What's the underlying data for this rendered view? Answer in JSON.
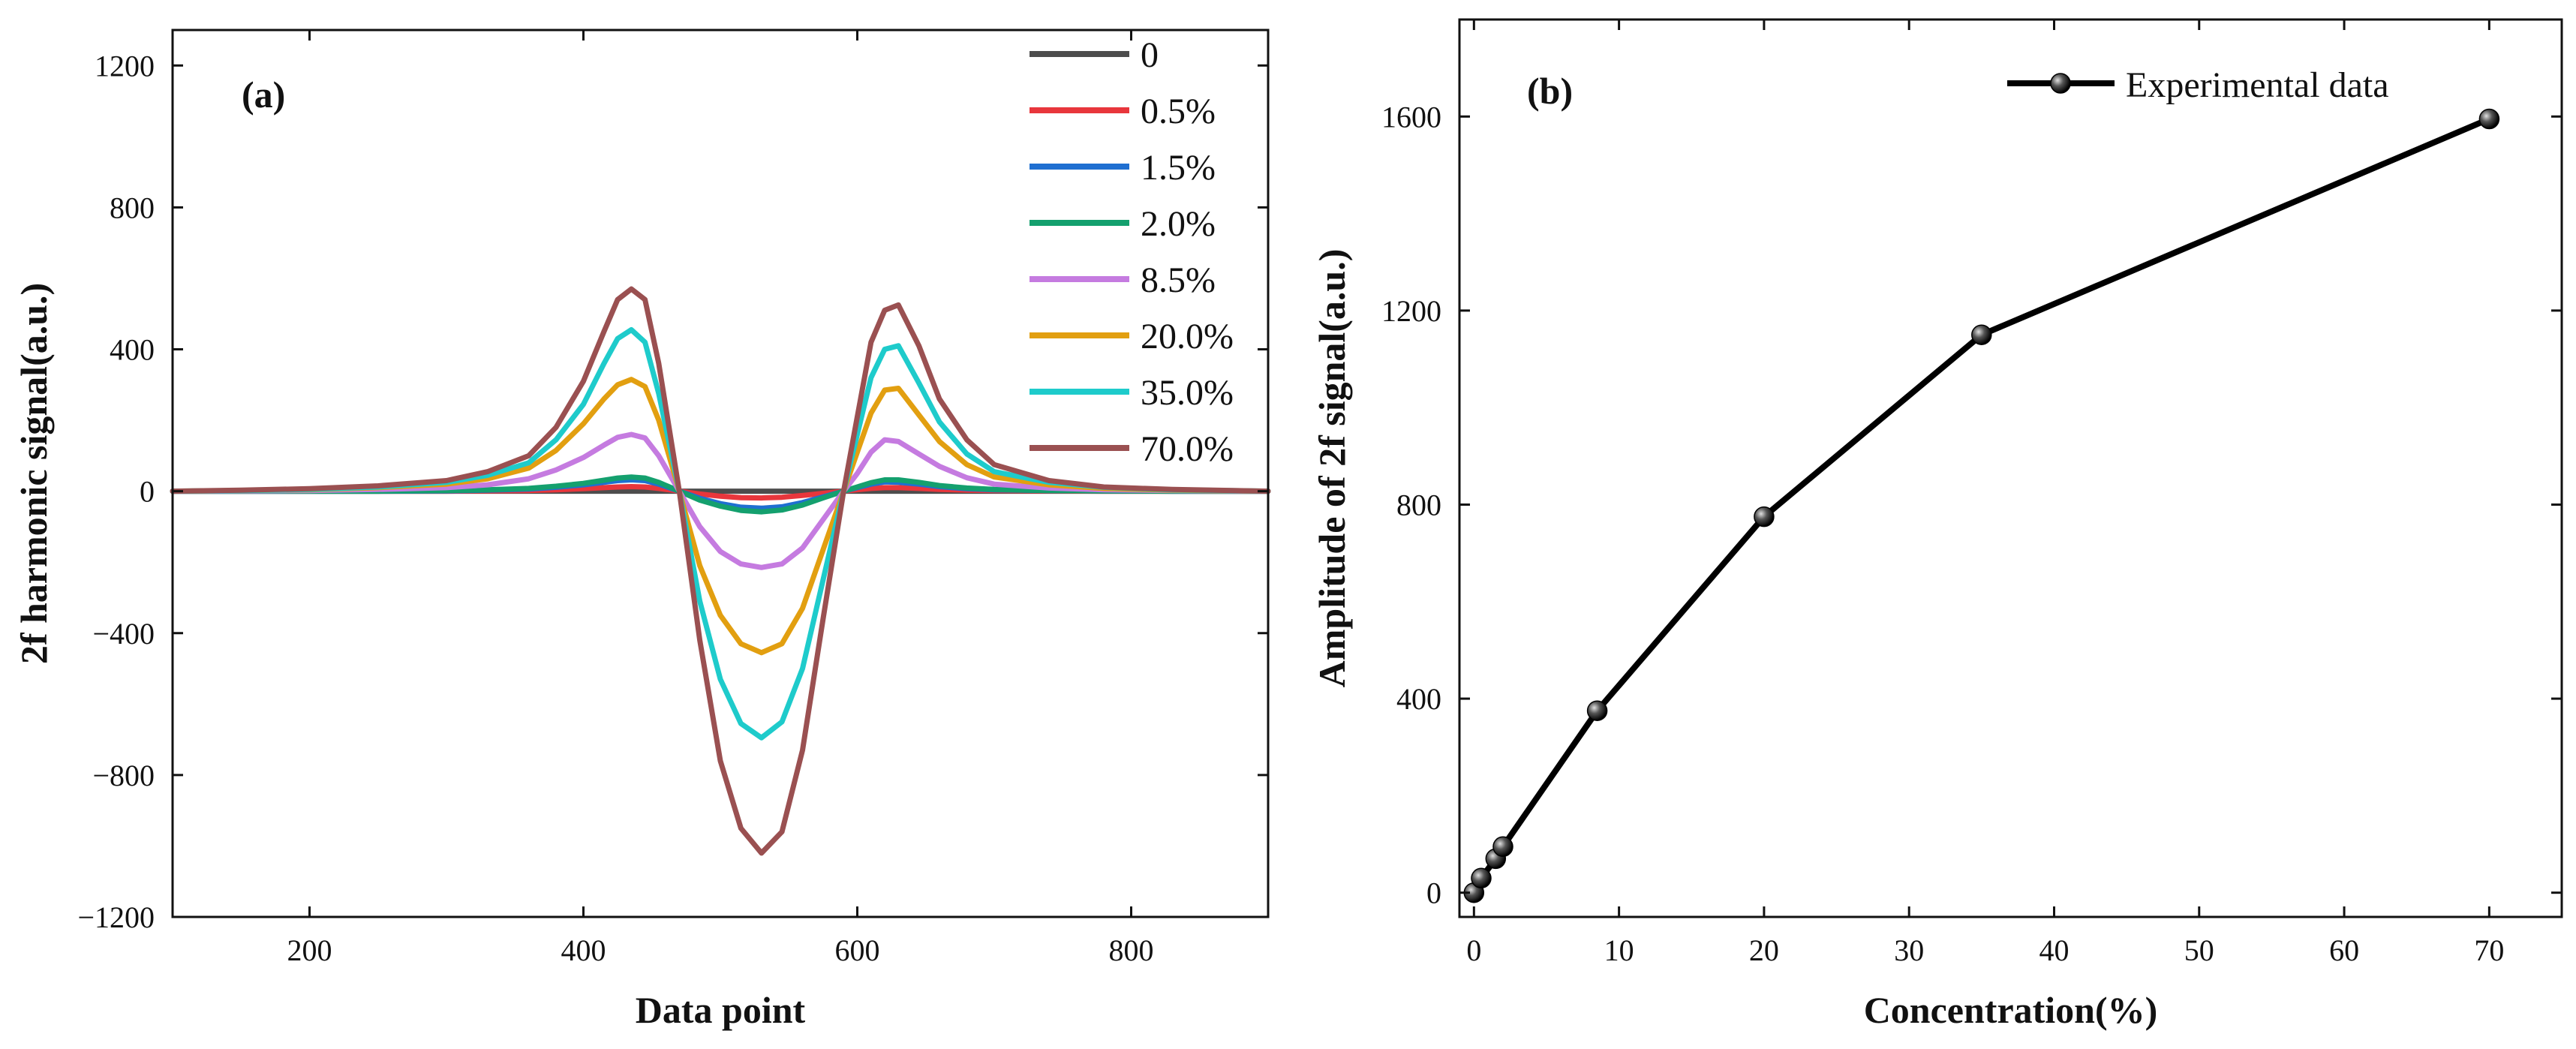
{
  "chart_data": [
    {
      "panel": "(a)",
      "type": "line",
      "title": "",
      "xlabel": "Data point",
      "ylabel": "2f harmonic signal(a.u.)",
      "xlim": [
        100,
        900
      ],
      "ylim": [
        -1200,
        1300
      ],
      "xticks": [
        200,
        400,
        600,
        800
      ],
      "xtick_labels": [
        "200",
        "400",
        "600",
        "800"
      ],
      "yticks": [
        -1200,
        -800,
        -400,
        0,
        400,
        800,
        1200
      ],
      "ytick_labels": [
        "−1200",
        "−800",
        "−400",
        "0",
        "400",
        "800",
        "1200"
      ],
      "legend_position": "top-right",
      "x": [
        100,
        150,
        200,
        250,
        300,
        330,
        360,
        380,
        400,
        415,
        425,
        435,
        445,
        455,
        470,
        485,
        500,
        515,
        530,
        545,
        560,
        575,
        590,
        600,
        610,
        620,
        630,
        645,
        660,
        680,
        700,
        740,
        780,
        830,
        900
      ],
      "series": [
        {
          "name": "0",
          "color": "#4d4d4d",
          "values": [
            0,
            0,
            0,
            0,
            0,
            0,
            0,
            0,
            0,
            0,
            0,
            0,
            0,
            0,
            0,
            0,
            0,
            0,
            0,
            0,
            0,
            0,
            0,
            0,
            0,
            0,
            0,
            0,
            0,
            0,
            0,
            0,
            0,
            0,
            0
          ]
        },
        {
          "name": "0.5%",
          "color": "#e8363c",
          "values": [
            0,
            0,
            0,
            0,
            0,
            1,
            2,
            4,
            7,
            10,
            12,
            13,
            12,
            8,
            0,
            -8,
            -14,
            -18,
            -19,
            -17,
            -12,
            -6,
            0,
            4,
            8,
            10,
            10,
            8,
            5,
            3,
            2,
            1,
            0,
            0,
            0
          ]
        },
        {
          "name": "1.5%",
          "color": "#1f6fd1",
          "values": [
            0,
            0,
            0,
            0,
            1,
            3,
            6,
            11,
            18,
            25,
            30,
            32,
            30,
            20,
            0,
            -20,
            -35,
            -45,
            -48,
            -44,
            -32,
            -16,
            0,
            10,
            20,
            26,
            25,
            20,
            13,
            7,
            4,
            2,
            1,
            0,
            0
          ]
        },
        {
          "name": "2.0%",
          "color": "#14a06e",
          "values": [
            0,
            0,
            0,
            0,
            2,
            4,
            8,
            14,
            22,
            31,
            37,
            40,
            37,
            25,
            0,
            -25,
            -42,
            -54,
            -58,
            -53,
            -39,
            -19,
            0,
            12,
            24,
            32,
            32,
            25,
            16,
            9,
            5,
            2,
            1,
            0,
            0
          ]
        },
        {
          "name": "8.5%",
          "color": "#c57be0",
          "values": [
            0,
            1,
            2,
            5,
            10,
            18,
            35,
            60,
            95,
            130,
            152,
            160,
            150,
            100,
            0,
            -100,
            -170,
            -205,
            -215,
            -205,
            -160,
            -80,
            0,
            50,
            110,
            145,
            140,
            105,
            70,
            38,
            20,
            9,
            4,
            2,
            0
          ]
        },
        {
          "name": "20.0%",
          "color": "#e29f10",
          "values": [
            0,
            2,
            4,
            10,
            20,
            35,
            65,
            115,
            190,
            260,
            300,
            315,
            295,
            200,
            0,
            -210,
            -350,
            -430,
            -455,
            -430,
            -330,
            -165,
            0,
            110,
            220,
            285,
            290,
            215,
            140,
            75,
            40,
            18,
            8,
            3,
            0
          ]
        },
        {
          "name": "35.0%",
          "color": "#1ecbcb",
          "values": [
            0,
            2,
            5,
            12,
            25,
            45,
            80,
            145,
            245,
            360,
            430,
            455,
            420,
            275,
            0,
            -310,
            -530,
            -655,
            -695,
            -650,
            -500,
            -250,
            0,
            160,
            320,
            400,
            410,
            305,
            195,
            105,
            55,
            25,
            11,
            4,
            0
          ]
        },
        {
          "name": "70.0%",
          "color": "#9a5051",
          "values": [
            0,
            3,
            7,
            15,
            30,
            55,
            100,
            180,
            310,
            450,
            540,
            570,
            540,
            360,
            0,
            -420,
            -760,
            -950,
            -1020,
            -960,
            -730,
            -360,
            0,
            210,
            420,
            510,
            525,
            410,
            260,
            145,
            75,
            30,
            12,
            5,
            0
          ]
        }
      ]
    },
    {
      "panel": "(b)",
      "type": "line",
      "title": "",
      "xlabel": "Concentration(%)",
      "ylabel": "Amplitude of 2f signal(a.u.)",
      "xlim": [
        -1,
        75
      ],
      "ylim": [
        -50,
        1800
      ],
      "xticks": [
        0,
        10,
        20,
        30,
        40,
        50,
        60,
        70
      ],
      "xtick_labels": [
        "0",
        "10",
        "20",
        "30",
        "40",
        "50",
        "60",
        "70"
      ],
      "yticks": [
        0,
        400,
        800,
        1200,
        1600
      ],
      "ytick_labels": [
        "0",
        "400",
        "800",
        "1200",
        "1600"
      ],
      "legend_position": "top-right",
      "series": [
        {
          "name": "Experimental data",
          "color": "#000000",
          "x": [
            0,
            0.5,
            1.5,
            2.0,
            8.5,
            20.0,
            35.0,
            70.0
          ],
          "y": [
            0,
            30,
            70,
            95,
            375,
            775,
            1150,
            1595
          ]
        }
      ]
    }
  ]
}
